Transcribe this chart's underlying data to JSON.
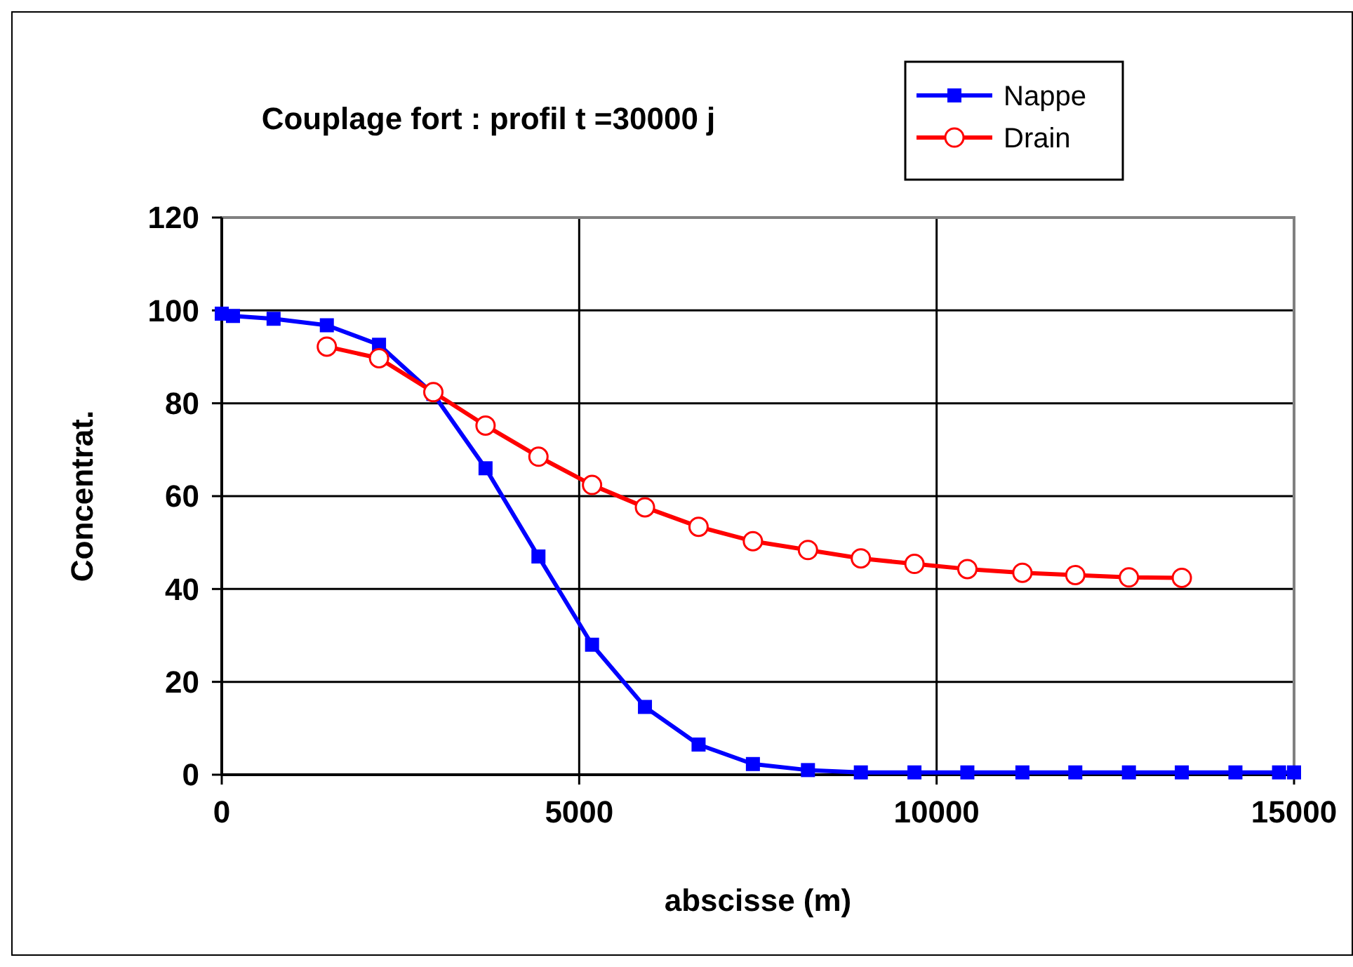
{
  "chart_data": {
    "type": "line",
    "title": "Couplage fort : profil t =30000 j",
    "xlabel": "abscisse (m)",
    "ylabel": "Concentrat.",
    "xlim": [
      0,
      15000
    ],
    "xticks": [
      0,
      5000,
      10000,
      15000
    ],
    "ylim": [
      0,
      120
    ],
    "yticks": [
      0,
      20,
      40,
      60,
      80,
      100,
      120
    ],
    "grid": true,
    "legend": "top right",
    "series": [
      {
        "name": "Nappe",
        "color": "#0000ff",
        "marker": "square",
        "x": [
          0,
          157,
          725,
          1470,
          2200,
          2960,
          3690,
          4430,
          5180,
          5920,
          6670,
          7430,
          8200,
          8940,
          9690,
          10430,
          11200,
          11940,
          12690,
          13430,
          14180,
          14790,
          15000
        ],
        "values": [
          99.3,
          98.8,
          98.2,
          96.8,
          92.6,
          82,
          66,
          47,
          28,
          14.6,
          6.5,
          2.3,
          1,
          0.5,
          0.5,
          0.5,
          0.5,
          0.5,
          0.5,
          0.5,
          0.5,
          0.5,
          0.5
        ]
      },
      {
        "name": "Drain",
        "color": "#ff0000",
        "marker": "circle",
        "x": [
          1470,
          2200,
          2960,
          3690,
          4430,
          5180,
          5920,
          6670,
          7430,
          8200,
          8940,
          9690,
          10430,
          11200,
          11940,
          12690,
          13430
        ],
        "values": [
          92.2,
          89.7,
          82.4,
          75.2,
          68.5,
          62.4,
          57.6,
          53.4,
          50.3,
          48.4,
          46.6,
          45.4,
          44.3,
          43.5,
          43,
          42.5,
          42.4
        ]
      }
    ]
  }
}
